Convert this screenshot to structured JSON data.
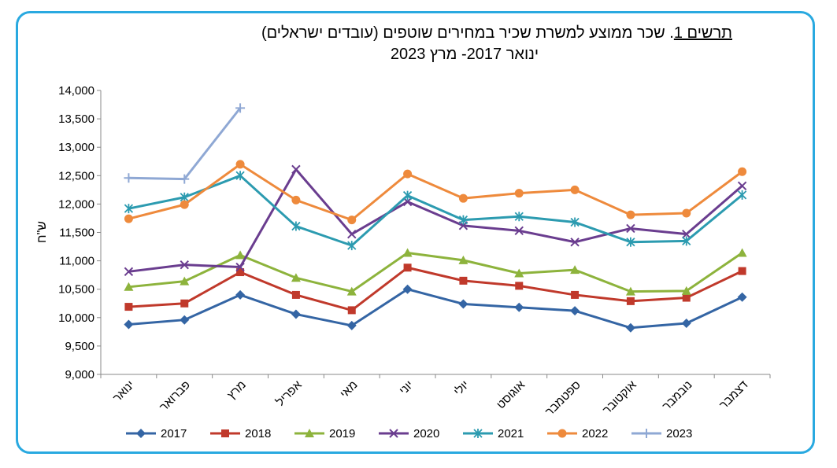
{
  "title_prefix": "תרשים 1",
  "title_main": ". שכר ממוצע למשרת שכיר במחירים שוטפים (עובדים ישראלים)",
  "subtitle": "ינואר 2017- מרץ 2023",
  "chart_data": {
    "type": "line",
    "ylabel": "ש\"ח",
    "ylim": [
      9000,
      14000
    ],
    "yticks": [
      "9,000",
      "9,500",
      "10,000",
      "10,500",
      "11,000",
      "11,500",
      "12,000",
      "12,500",
      "13,000",
      "13,500",
      "14,000"
    ],
    "grid": false,
    "legend_position": "bottom",
    "categories": [
      "ינואר",
      "פברואר",
      "מרץ",
      "אפריל",
      "מאי",
      "יוני",
      "יולי",
      "אוגוסט",
      "ספטמבר",
      "אוקטובר",
      "נובמבר",
      "דצמבר"
    ],
    "series": [
      {
        "name": "2017",
        "color": "#3465a4",
        "marker": "diamond",
        "values": [
          9880,
          9960,
          10400,
          10060,
          9860,
          10500,
          10240,
          10180,
          10120,
          9820,
          9900,
          10360
        ]
      },
      {
        "name": "2018",
        "color": "#c0392b",
        "marker": "square",
        "values": [
          10190,
          10250,
          10800,
          10400,
          10130,
          10880,
          10650,
          10560,
          10400,
          10290,
          10350,
          10820
        ]
      },
      {
        "name": "2019",
        "color": "#8db33c",
        "marker": "triangle",
        "values": [
          10540,
          10640,
          11100,
          10700,
          10460,
          11140,
          11010,
          10780,
          10840,
          10460,
          10470,
          11140
        ]
      },
      {
        "name": "2020",
        "color": "#6a3d8f",
        "marker": "x",
        "values": [
          10810,
          10930,
          10890,
          12610,
          11470,
          12040,
          11620,
          11530,
          11330,
          11570,
          11470,
          12320
        ]
      },
      {
        "name": "2021",
        "color": "#2c9bb0",
        "marker": "star",
        "values": [
          11920,
          12120,
          12500,
          11610,
          11270,
          12150,
          11720,
          11780,
          11680,
          11330,
          11350,
          12160
        ]
      },
      {
        "name": "2022",
        "color": "#ee8a3c",
        "marker": "circle",
        "values": [
          11740,
          11990,
          12700,
          12070,
          11720,
          12530,
          12100,
          12190,
          12250,
          11810,
          11840,
          12570
        ]
      },
      {
        "name": "2023",
        "color": "#8fa8d4",
        "marker": "plus",
        "values": [
          12460,
          12440,
          13690,
          null,
          null,
          null,
          null,
          null,
          null,
          null,
          null,
          null
        ]
      }
    ]
  }
}
